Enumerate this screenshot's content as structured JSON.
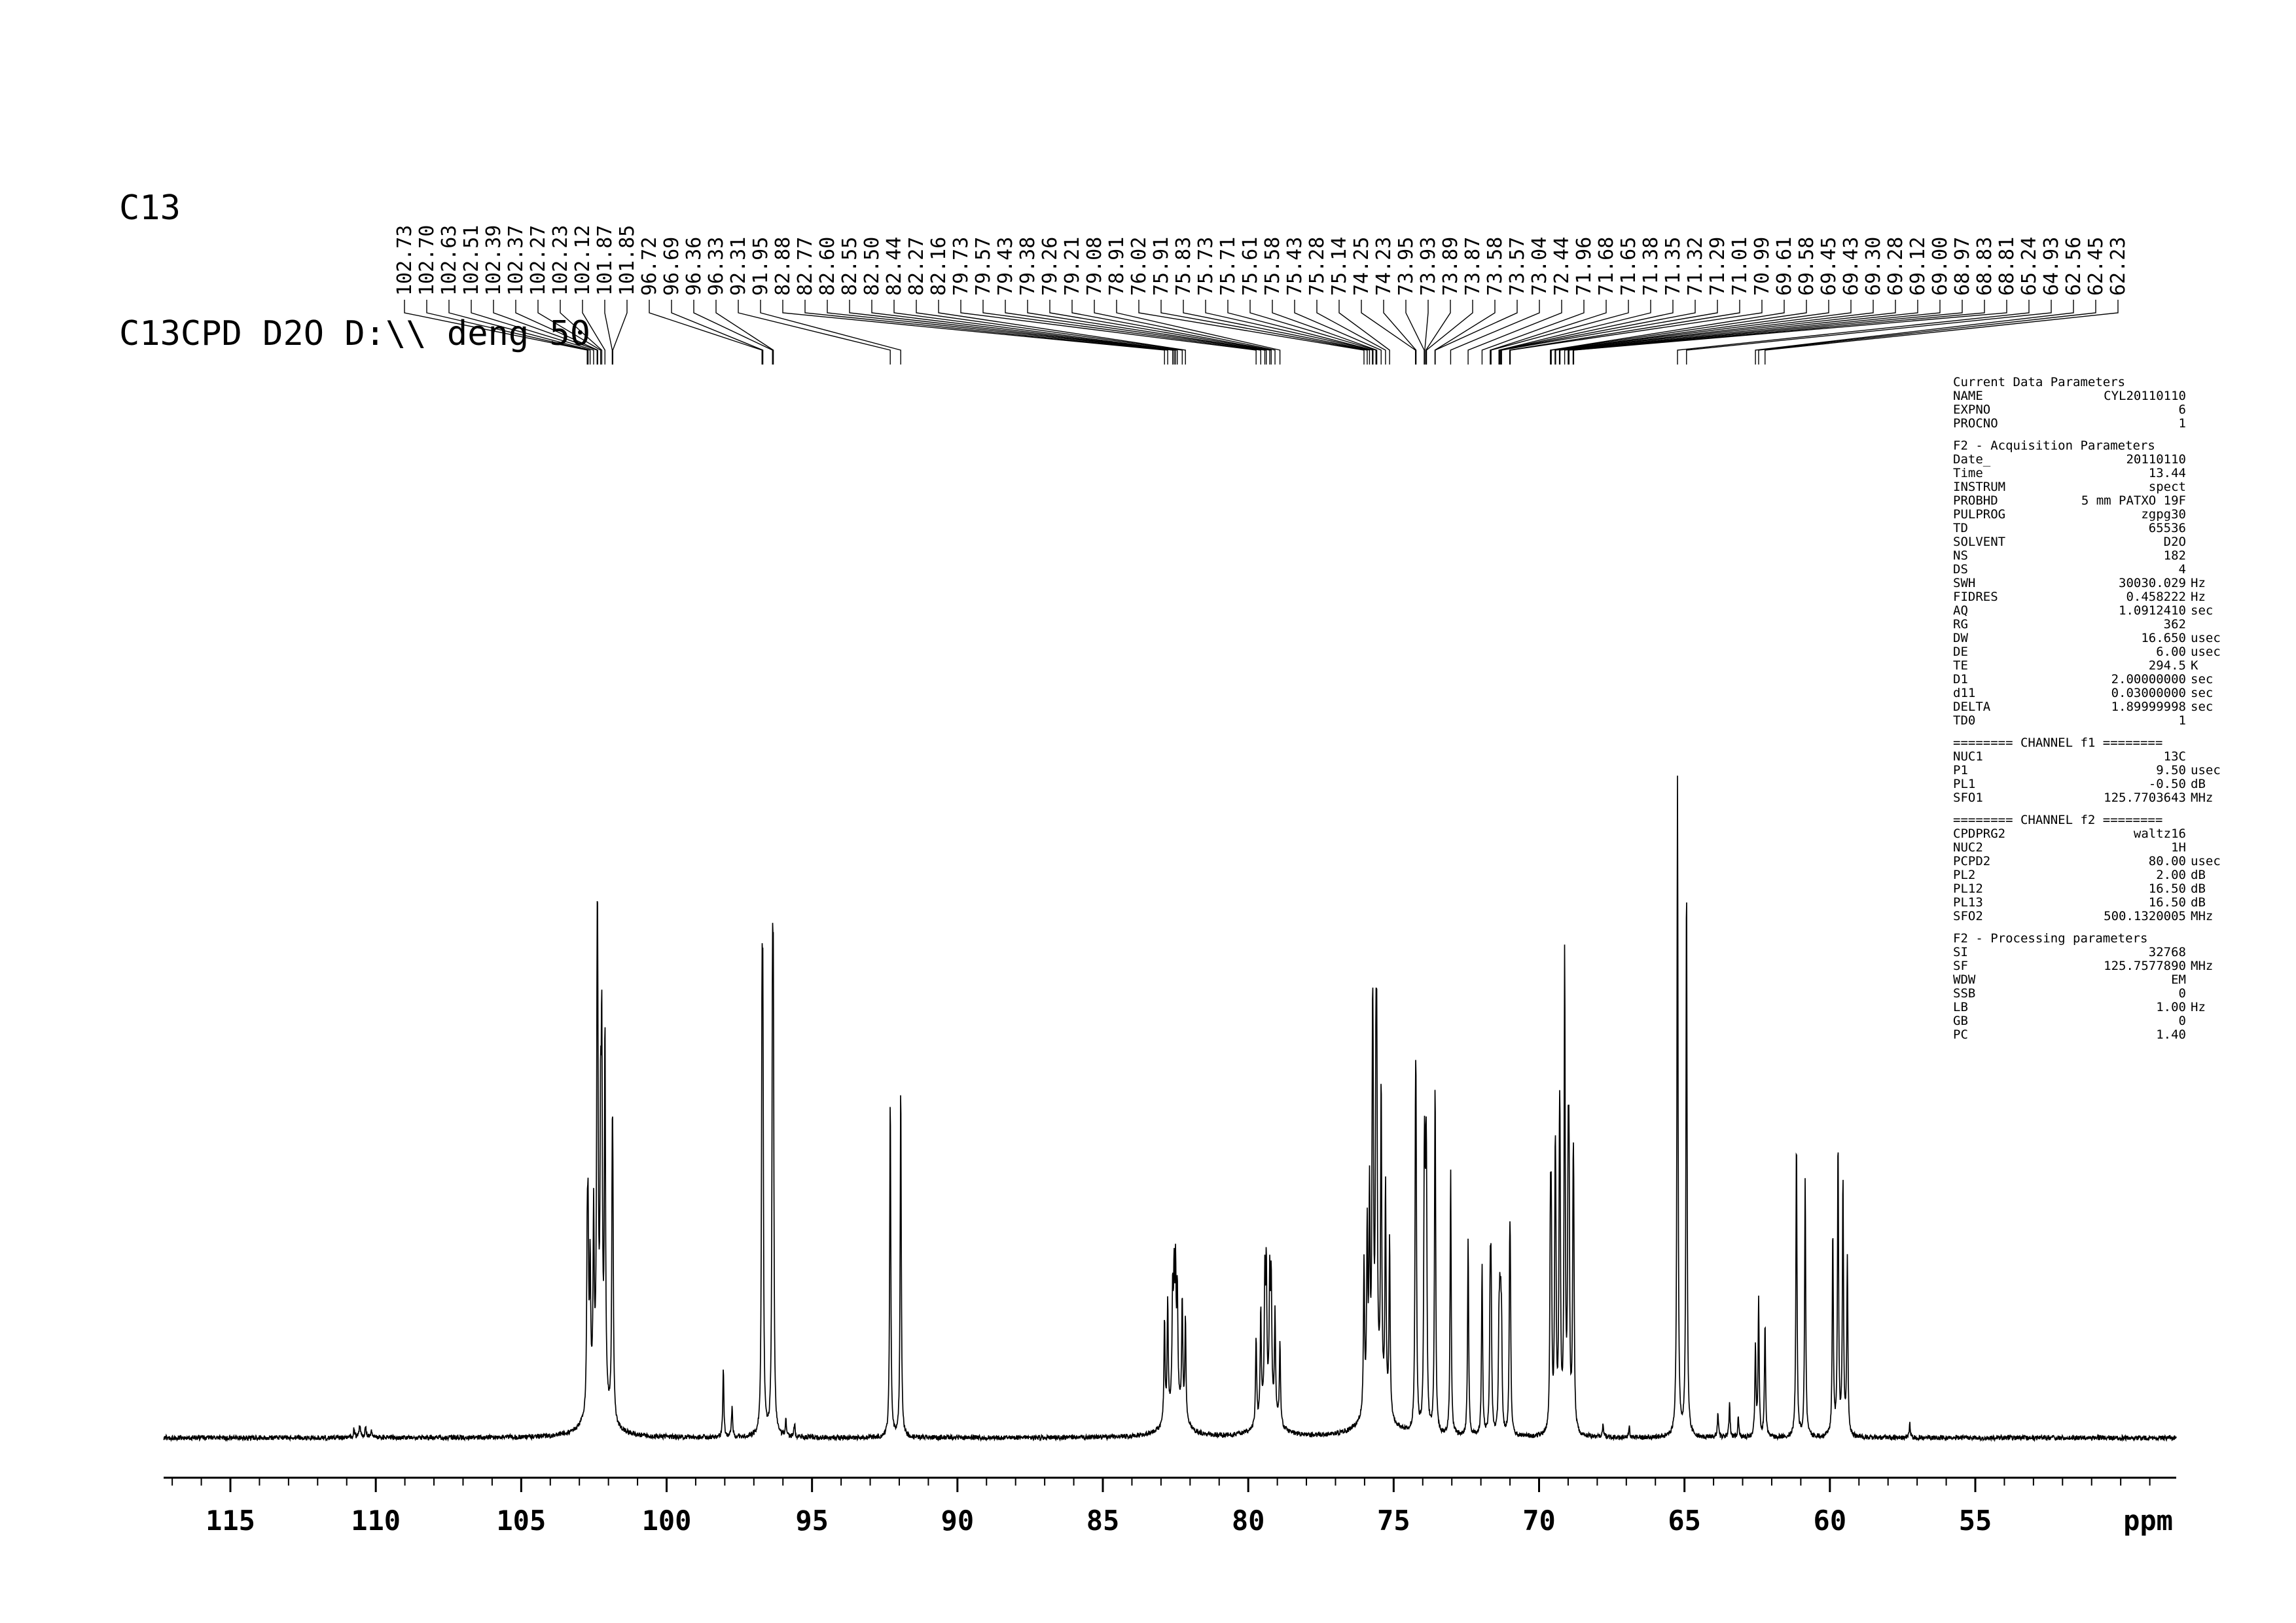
{
  "title": {
    "line1": "C13",
    "line2": "C13CPD D2O D:\\\\ deng 50"
  },
  "chart_data": {
    "type": "line",
    "title": "13C CPD NMR spectrum",
    "xlabel": "ppm",
    "ylabel": "",
    "x_ticks": [
      115,
      110,
      105,
      100,
      95,
      90,
      85,
      80,
      75,
      70,
      65,
      60,
      55
    ],
    "x_range_ppm": [
      117.3,
      48.1
    ],
    "x_reversed": true,
    "grid": false,
    "noise_amplitude": 0.0035,
    "peak_labels": [
      "102.73",
      "102.70",
      "102.63",
      "102.51",
      "102.39",
      "102.37",
      "102.27",
      "102.23",
      "102.12",
      "101.87",
      "101.85",
      "96.72",
      "96.69",
      "96.36",
      "96.33",
      "92.31",
      "91.95",
      "82.88",
      "82.77",
      "82.60",
      "82.55",
      "82.50",
      "82.44",
      "82.27",
      "82.16",
      "79.73",
      "79.57",
      "79.43",
      "79.38",
      "79.26",
      "79.21",
      "79.08",
      "78.91",
      "76.02",
      "75.91",
      "75.83",
      "75.73",
      "75.71",
      "75.61",
      "75.58",
      "75.43",
      "75.28",
      "75.14",
      "74.25",
      "74.23",
      "73.95",
      "73.93",
      "73.89",
      "73.87",
      "73.58",
      "73.57",
      "73.04",
      "72.44",
      "71.96",
      "71.68",
      "71.65",
      "71.38",
      "71.35",
      "71.32",
      "71.29",
      "71.01",
      "70.99",
      "69.61",
      "69.58",
      "69.45",
      "69.43",
      "69.30",
      "69.28",
      "69.12",
      "69.00",
      "68.97",
      "68.83",
      "68.81",
      "65.24",
      "64.93",
      "62.56",
      "62.45",
      "62.23"
    ],
    "peaks": [
      {
        "ppm": 110.75,
        "h": 0.012,
        "w": 0.03
      },
      {
        "ppm": 110.55,
        "h": 0.018,
        "w": 0.03
      },
      {
        "ppm": 110.35,
        "h": 0.015,
        "w": 0.03
      },
      {
        "ppm": 110.15,
        "h": 0.01,
        "w": 0.03
      },
      {
        "ppm": 102.73,
        "h": 0.22
      },
      {
        "ppm": 102.7,
        "h": 0.24
      },
      {
        "ppm": 102.63,
        "h": 0.2
      },
      {
        "ppm": 102.51,
        "h": 0.26
      },
      {
        "ppm": 102.39,
        "h": 0.42
      },
      {
        "ppm": 102.37,
        "h": 0.4
      },
      {
        "ppm": 102.27,
        "h": 0.34
      },
      {
        "ppm": 102.23,
        "h": 0.48
      },
      {
        "ppm": 102.12,
        "h": 0.54
      },
      {
        "ppm": 101.87,
        "h": 0.28
      },
      {
        "ppm": 101.85,
        "h": 0.26
      },
      {
        "ppm": 102.35,
        "h": 0.08,
        "w": 0.3
      },
      {
        "ppm": 98.05,
        "h": 0.1
      },
      {
        "ppm": 97.75,
        "h": 0.045
      },
      {
        "ppm": 96.72,
        "h": 0.52
      },
      {
        "ppm": 96.69,
        "h": 0.52
      },
      {
        "ppm": 96.36,
        "h": 0.54
      },
      {
        "ppm": 96.33,
        "h": 0.54
      },
      {
        "ppm": 95.9,
        "h": 0.025
      },
      {
        "ppm": 95.6,
        "h": 0.02
      },
      {
        "ppm": 92.31,
        "h": 0.5
      },
      {
        "ppm": 91.95,
        "h": 0.52
      },
      {
        "ppm": 82.88,
        "h": 0.15
      },
      {
        "ppm": 82.77,
        "h": 0.17
      },
      {
        "ppm": 82.6,
        "h": 0.16
      },
      {
        "ppm": 82.55,
        "h": 0.17
      },
      {
        "ppm": 82.5,
        "h": 0.18
      },
      {
        "ppm": 82.44,
        "h": 0.16
      },
      {
        "ppm": 82.27,
        "h": 0.17
      },
      {
        "ppm": 82.16,
        "h": 0.15
      },
      {
        "ppm": 82.5,
        "h": 0.05,
        "w": 0.3
      },
      {
        "ppm": 79.73,
        "h": 0.13
      },
      {
        "ppm": 79.57,
        "h": 0.16
      },
      {
        "ppm": 79.43,
        "h": 0.19
      },
      {
        "ppm": 79.38,
        "h": 0.2
      },
      {
        "ppm": 79.26,
        "h": 0.18
      },
      {
        "ppm": 79.21,
        "h": 0.18
      },
      {
        "ppm": 79.08,
        "h": 0.15
      },
      {
        "ppm": 78.91,
        "h": 0.12
      },
      {
        "ppm": 79.3,
        "h": 0.045,
        "w": 0.3
      },
      {
        "ppm": 76.02,
        "h": 0.22
      },
      {
        "ppm": 75.91,
        "h": 0.26
      },
      {
        "ppm": 75.83,
        "h": 0.3
      },
      {
        "ppm": 75.73,
        "h": 0.34
      },
      {
        "ppm": 75.71,
        "h": 0.34
      },
      {
        "ppm": 75.61,
        "h": 0.4
      },
      {
        "ppm": 75.58,
        "h": 0.42
      },
      {
        "ppm": 75.43,
        "h": 0.46
      },
      {
        "ppm": 75.28,
        "h": 0.33
      },
      {
        "ppm": 75.14,
        "h": 0.26
      },
      {
        "ppm": 75.6,
        "h": 0.06,
        "w": 0.4
      },
      {
        "ppm": 74.25,
        "h": 0.33
      },
      {
        "ppm": 74.23,
        "h": 0.33
      },
      {
        "ppm": 73.95,
        "h": 0.24
      },
      {
        "ppm": 73.93,
        "h": 0.24
      },
      {
        "ppm": 73.89,
        "h": 0.24
      },
      {
        "ppm": 73.87,
        "h": 0.24
      },
      {
        "ppm": 73.58,
        "h": 0.27
      },
      {
        "ppm": 73.57,
        "h": 0.27
      },
      {
        "ppm": 73.04,
        "h": 0.39
      },
      {
        "ppm": 72.44,
        "h": 0.29
      },
      {
        "ppm": 71.96,
        "h": 0.25
      },
      {
        "ppm": 71.68,
        "h": 0.2
      },
      {
        "ppm": 71.65,
        "h": 0.2
      },
      {
        "ppm": 71.38,
        "h": 0.13
      },
      {
        "ppm": 71.35,
        "h": 0.13
      },
      {
        "ppm": 71.32,
        "h": 0.13
      },
      {
        "ppm": 71.29,
        "h": 0.13
      },
      {
        "ppm": 71.01,
        "h": 0.19
      },
      {
        "ppm": 70.99,
        "h": 0.19
      },
      {
        "ppm": 69.61,
        "h": 0.27
      },
      {
        "ppm": 69.58,
        "h": 0.27
      },
      {
        "ppm": 69.45,
        "h": 0.25
      },
      {
        "ppm": 69.43,
        "h": 0.25
      },
      {
        "ppm": 69.3,
        "h": 0.29
      },
      {
        "ppm": 69.28,
        "h": 0.29
      },
      {
        "ppm": 69.12,
        "h": 0.7
      },
      {
        "ppm": 69.0,
        "h": 0.33
      },
      {
        "ppm": 68.97,
        "h": 0.33
      },
      {
        "ppm": 68.83,
        "h": 0.25
      },
      {
        "ppm": 68.81,
        "h": 0.25
      },
      {
        "ppm": 67.8,
        "h": 0.02
      },
      {
        "ppm": 66.9,
        "h": 0.015
      },
      {
        "ppm": 65.24,
        "h": 0.97
      },
      {
        "ppm": 64.93,
        "h": 0.82
      },
      {
        "ppm": 63.85,
        "h": 0.035
      },
      {
        "ppm": 63.45,
        "h": 0.05
      },
      {
        "ppm": 63.15,
        "h": 0.03
      },
      {
        "ppm": 62.56,
        "h": 0.13
      },
      {
        "ppm": 62.45,
        "h": 0.2
      },
      {
        "ppm": 62.23,
        "h": 0.17
      },
      {
        "ppm": 61.15,
        "h": 0.44
      },
      {
        "ppm": 60.85,
        "h": 0.38
      },
      {
        "ppm": 59.9,
        "h": 0.3
      },
      {
        "ppm": 59.72,
        "h": 0.43
      },
      {
        "ppm": 59.55,
        "h": 0.38
      },
      {
        "ppm": 59.4,
        "h": 0.26
      },
      {
        "ppm": 57.25,
        "h": 0.02
      }
    ]
  },
  "parameters": {
    "sections": [
      {
        "header": "Current Data Parameters",
        "rows": [
          [
            "NAME",
            "CYL20110110",
            ""
          ],
          [
            "EXPNO",
            "6",
            ""
          ],
          [
            "PROCNO",
            "1",
            ""
          ]
        ]
      },
      {
        "header": "F2 - Acquisition Parameters",
        "rows": [
          [
            "Date_",
            "20110110",
            ""
          ],
          [
            "Time",
            "13.44",
            ""
          ],
          [
            "INSTRUM",
            "spect",
            ""
          ],
          [
            "PROBHD",
            "5 mm PATXO 19F",
            ""
          ],
          [
            "PULPROG",
            "zgpg30",
            ""
          ],
          [
            "TD",
            "65536",
            ""
          ],
          [
            "SOLVENT",
            "D2O",
            ""
          ],
          [
            "NS",
            "182",
            ""
          ],
          [
            "DS",
            "4",
            ""
          ],
          [
            "SWH",
            "30030.029",
            "Hz"
          ],
          [
            "FIDRES",
            "0.458222",
            "Hz"
          ],
          [
            "AQ",
            "1.0912410",
            "sec"
          ],
          [
            "RG",
            "362",
            ""
          ],
          [
            "DW",
            "16.650",
            "usec"
          ],
          [
            "DE",
            "6.00",
            "usec"
          ],
          [
            "TE",
            "294.5",
            "K"
          ],
          [
            "D1",
            "2.00000000",
            "sec"
          ],
          [
            "d11",
            "0.03000000",
            "sec"
          ],
          [
            "DELTA",
            "1.89999998",
            "sec"
          ],
          [
            "TD0",
            "1",
            ""
          ]
        ]
      },
      {
        "header": "======== CHANNEL f1 ========",
        "rows": [
          [
            "NUC1",
            "13C",
            ""
          ],
          [
            "P1",
            "9.50",
            "usec"
          ],
          [
            "PL1",
            "-0.50",
            "dB"
          ],
          [
            "SFO1",
            "125.7703643",
            "MHz"
          ]
        ]
      },
      {
        "header": "======== CHANNEL f2 ========",
        "rows": [
          [
            "CPDPRG2",
            "waltz16",
            ""
          ],
          [
            "NUC2",
            "1H",
            ""
          ],
          [
            "PCPD2",
            "80.00",
            "usec"
          ],
          [
            "PL2",
            "2.00",
            "dB"
          ],
          [
            "PL12",
            "16.50",
            "dB"
          ],
          [
            "PL13",
            "16.50",
            "dB"
          ],
          [
            "SFO2",
            "500.1320005",
            "MHz"
          ]
        ]
      },
      {
        "header": "F2 - Processing parameters",
        "rows": [
          [
            "SI",
            "32768",
            ""
          ],
          [
            "SF",
            "125.7577890",
            "MHz"
          ],
          [
            "WDW",
            "EM",
            ""
          ],
          [
            "SSB",
            "0",
            ""
          ],
          [
            "LB",
            "1.00",
            "Hz"
          ],
          [
            "GB",
            "0",
            ""
          ],
          [
            "PC",
            "1.40",
            ""
          ]
        ]
      }
    ]
  }
}
